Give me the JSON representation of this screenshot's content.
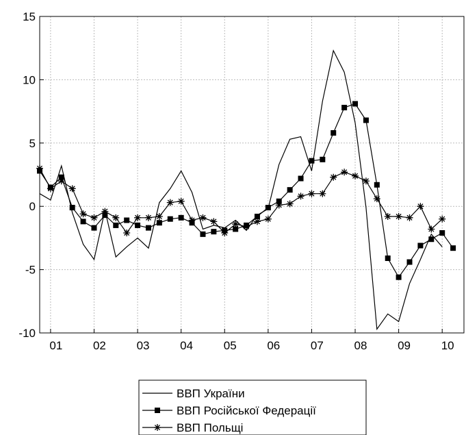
{
  "chart_data": {
    "type": "line",
    "title": "",
    "xlabel": "",
    "ylabel": "",
    "ylim": [
      -10,
      15
    ],
    "yticks": [
      -10,
      -5,
      0,
      5,
      10,
      15
    ],
    "xlim": [
      2000.75,
      2010.5
    ],
    "xtick_labels": [
      {
        "label": "01",
        "x": 2001.125
      },
      {
        "label": "02",
        "x": 2002.125
      },
      {
        "label": "03",
        "x": 2003.125
      },
      {
        "label": "04",
        "x": 2004.125
      },
      {
        "label": "05",
        "x": 2005.125
      },
      {
        "label": "06",
        "x": 2006.125
      },
      {
        "label": "07",
        "x": 2007.125
      },
      {
        "label": "08",
        "x": 2008.125
      },
      {
        "label": "09",
        "x": 2009.125
      },
      {
        "label": "10",
        "x": 2010.125
      }
    ],
    "grid": true,
    "legend_position": "bottom-center",
    "series": [
      {
        "name": "ВВП України",
        "marker": "none",
        "x": [
          2000.75,
          2001.0,
          2001.25,
          2001.5,
          2001.75,
          2002.0,
          2002.25,
          2002.5,
          2002.75,
          2003.0,
          2003.25,
          2003.5,
          2003.75,
          2004.0,
          2004.25,
          2004.5,
          2004.75,
          2005.0,
          2005.25,
          2005.5,
          2005.75,
          2006.0,
          2006.25,
          2006.5,
          2006.75,
          2007.0,
          2007.25,
          2007.5,
          2007.75,
          2008.0,
          2008.25,
          2008.5,
          2008.75,
          2009.0,
          2009.25,
          2009.5,
          2009.75,
          2010.0
        ],
        "y": [
          1.0,
          0.5,
          3.2,
          -0.5,
          -3.0,
          -4.2,
          -0.3,
          -4.0,
          -3.2,
          -2.5,
          -3.3,
          0.3,
          1.4,
          2.8,
          1.1,
          -1.8,
          -1.5,
          -1.7,
          -1.1,
          -1.9,
          -0.7,
          -0.2,
          3.3,
          5.3,
          5.5,
          2.8,
          8.3,
          12.3,
          10.6,
          6.6,
          -0.1,
          -9.7,
          -8.5,
          -9.1,
          -6.1,
          -4.2,
          -2.2,
          -3.2
        ]
      },
      {
        "name": "ВВП Російської Федерації",
        "marker": "square",
        "x": [
          2000.75,
          2001.0,
          2001.25,
          2001.5,
          2001.75,
          2002.0,
          2002.25,
          2002.5,
          2002.75,
          2003.0,
          2003.25,
          2003.5,
          2003.75,
          2004.0,
          2004.25,
          2004.5,
          2004.75,
          2005.0,
          2005.25,
          2005.5,
          2005.75,
          2006.0,
          2006.25,
          2006.5,
          2006.75,
          2007.0,
          2007.25,
          2007.5,
          2007.75,
          2008.0,
          2008.25,
          2008.5,
          2008.75,
          2009.0,
          2009.25,
          2009.5,
          2009.75,
          2010.0,
          2010.25
        ],
        "y": [
          2.8,
          1.5,
          2.3,
          -0.1,
          -1.2,
          -1.7,
          -0.7,
          -1.5,
          -1.1,
          -1.5,
          -1.7,
          -1.3,
          -1.0,
          -0.9,
          -1.3,
          -2.2,
          -2.0,
          -1.9,
          -1.8,
          -1.5,
          -0.8,
          -0.1,
          0.4,
          1.3,
          2.2,
          3.6,
          3.7,
          5.8,
          7.8,
          8.1,
          6.8,
          1.7,
          -4.1,
          -5.6,
          -4.4,
          -3.1,
          -2.6,
          -2.1,
          -3.3
        ]
      },
      {
        "name": "ВВП Польщі",
        "marker": "star",
        "x": [
          2000.75,
          2001.0,
          2001.25,
          2001.5,
          2001.75,
          2002.0,
          2002.25,
          2002.5,
          2002.75,
          2003.0,
          2003.25,
          2003.5,
          2003.75,
          2004.0,
          2004.25,
          2004.5,
          2004.75,
          2005.0,
          2005.25,
          2005.5,
          2005.75,
          2006.0,
          2006.25,
          2006.5,
          2006.75,
          2007.0,
          2007.25,
          2007.5,
          2007.75,
          2008.0,
          2008.25,
          2008.5,
          2008.75,
          2009.0,
          2009.25,
          2009.5,
          2009.75,
          2010.0
        ],
        "y": [
          3.0,
          1.4,
          2.0,
          1.4,
          -0.6,
          -0.9,
          -0.4,
          -0.9,
          -2.1,
          -0.9,
          -0.9,
          -0.8,
          0.3,
          0.4,
          -1.1,
          -0.9,
          -1.2,
          -2.1,
          -1.4,
          -1.6,
          -1.2,
          -1.0,
          0.1,
          0.2,
          0.8,
          1.0,
          1.0,
          2.3,
          2.7,
          2.4,
          2.0,
          0.6,
          -0.8,
          -0.8,
          -0.9,
          0.0,
          -1.8,
          -1.0
        ]
      }
    ]
  }
}
